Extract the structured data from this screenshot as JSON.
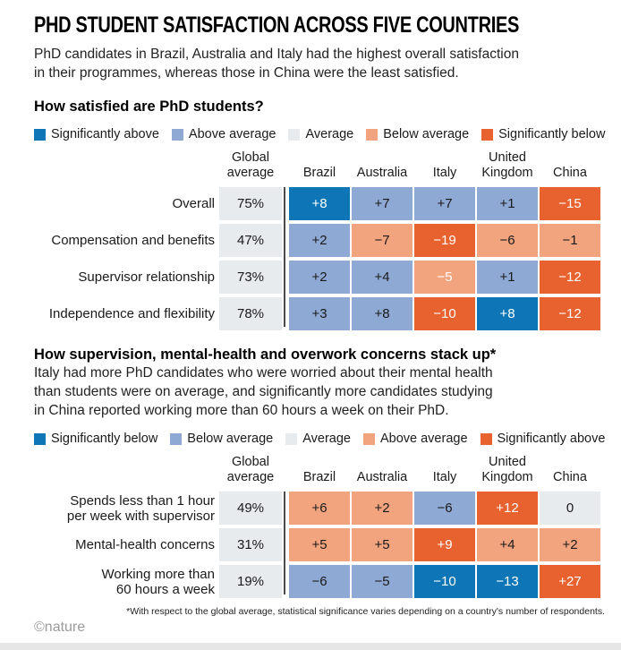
{
  "title": "PHD STUDENT SATISFACTION ACROSS FIVE COUNTRIES",
  "intro": [
    "PhD candidates in Brazil, Australia and Italy had the highest overall satisfaction",
    "in their programmes, whereas those in China were the least satisfied."
  ],
  "palette": {
    "dark-blue": "#0e76b6",
    "mid-blue": "#8ea9d4",
    "light-gray": "#e7ebee",
    "light-orange": "#f2a47e",
    "dark-orange": "#e7622e"
  },
  "footer": {
    "footnote": "*With respect to the global average, statistical significance varies depending on a country's number of respondents.",
    "credit": "©nature"
  },
  "chart_data": [
    {
      "type": "heatmap",
      "title": "How satisfied are PhD students?",
      "legend": [
        {
          "label": "Significantly above",
          "color": "dark-blue"
        },
        {
          "label": "Above average",
          "color": "mid-blue"
        },
        {
          "label": "Average",
          "color": "light-gray"
        },
        {
          "label": "Below average",
          "color": "light-orange"
        },
        {
          "label": "Significantly below",
          "color": "dark-orange"
        }
      ],
      "columns": [
        "Global average",
        "Brazil",
        "Australia",
        "Italy",
        "United Kingdom",
        "China"
      ],
      "rows": [
        {
          "label": [
            "Overall"
          ],
          "global": "75%",
          "cells": [
            {
              "v": "+8",
              "level": "dark-blue",
              "ink": "white"
            },
            {
              "v": "+7",
              "level": "mid-blue",
              "ink": "dark"
            },
            {
              "v": "+7",
              "level": "mid-blue",
              "ink": "dark"
            },
            {
              "v": "+1",
              "level": "mid-blue",
              "ink": "dark"
            },
            {
              "v": "−15",
              "level": "dark-orange",
              "ink": "white"
            }
          ]
        },
        {
          "label": [
            "Compensation and benefits"
          ],
          "global": "47%",
          "cells": [
            {
              "v": "+2",
              "level": "mid-blue",
              "ink": "dark"
            },
            {
              "v": "−7",
              "level": "light-orange",
              "ink": "dark"
            },
            {
              "v": "−19",
              "level": "dark-orange",
              "ink": "white"
            },
            {
              "v": "−6",
              "level": "light-orange",
              "ink": "dark"
            },
            {
              "v": "−1",
              "level": "light-orange",
              "ink": "dark"
            }
          ]
        },
        {
          "label": [
            "Supervisor relationship"
          ],
          "global": "73%",
          "cells": [
            {
              "v": "+2",
              "level": "mid-blue",
              "ink": "dark"
            },
            {
              "v": "+4",
              "level": "mid-blue",
              "ink": "dark"
            },
            {
              "v": "−5",
              "level": "light-orange",
              "ink": "white"
            },
            {
              "v": "+1",
              "level": "mid-blue",
              "ink": "dark"
            },
            {
              "v": "−12",
              "level": "dark-orange",
              "ink": "white"
            }
          ]
        },
        {
          "label": [
            "Independence and flexibility"
          ],
          "global": "78%",
          "cells": [
            {
              "v": "+3",
              "level": "mid-blue",
              "ink": "dark"
            },
            {
              "v": "+8",
              "level": "mid-blue",
              "ink": "dark"
            },
            {
              "v": "−10",
              "level": "dark-orange",
              "ink": "white"
            },
            {
              "v": "+8",
              "level": "dark-blue",
              "ink": "white"
            },
            {
              "v": "−12",
              "level": "dark-orange",
              "ink": "white"
            }
          ]
        }
      ]
    },
    {
      "type": "heatmap",
      "title": "How supervision, mental-health and overwork concerns stack up*",
      "description": [
        "Italy had more PhD candidates who were worried about their mental health",
        "than students were on average, and significantly more candidates studying",
        "in China reported working more than 60 hours a week on their PhD."
      ],
      "legend": [
        {
          "label": "Significantly below",
          "color": "dark-blue"
        },
        {
          "label": "Below average",
          "color": "mid-blue"
        },
        {
          "label": "Average",
          "color": "light-gray"
        },
        {
          "label": "Above average",
          "color": "light-orange"
        },
        {
          "label": "Significantly above",
          "color": "dark-orange"
        }
      ],
      "columns": [
        "Global average",
        "Brazil",
        "Australia",
        "Italy",
        "United Kingdom",
        "China"
      ],
      "rows": [
        {
          "label": [
            "Spends less than 1 hour",
            "per week with supervisor"
          ],
          "global": "49%",
          "cells": [
            {
              "v": "+6",
              "level": "light-orange",
              "ink": "dark"
            },
            {
              "v": "+2",
              "level": "light-orange",
              "ink": "dark"
            },
            {
              "v": "−6",
              "level": "mid-blue",
              "ink": "dark"
            },
            {
              "v": "+12",
              "level": "dark-orange",
              "ink": "white"
            },
            {
              "v": "0",
              "level": "light-gray",
              "ink": "dark"
            }
          ]
        },
        {
          "label": [
            "Mental-health concerns"
          ],
          "global": "31%",
          "cells": [
            {
              "v": "+5",
              "level": "light-orange",
              "ink": "dark"
            },
            {
              "v": "+5",
              "level": "light-orange",
              "ink": "dark"
            },
            {
              "v": "+9",
              "level": "dark-orange",
              "ink": "white"
            },
            {
              "v": "+4",
              "level": "light-orange",
              "ink": "dark"
            },
            {
              "v": "+2",
              "level": "light-orange",
              "ink": "dark"
            }
          ]
        },
        {
          "label": [
            "Working more than",
            "60 hours a week"
          ],
          "global": "19%",
          "cells": [
            {
              "v": "−6",
              "level": "mid-blue",
              "ink": "dark"
            },
            {
              "v": "−5",
              "level": "mid-blue",
              "ink": "dark"
            },
            {
              "v": "−10",
              "level": "dark-blue",
              "ink": "white"
            },
            {
              "v": "−13",
              "level": "dark-blue",
              "ink": "white"
            },
            {
              "v": "+27",
              "level": "dark-orange",
              "ink": "white"
            }
          ]
        }
      ]
    }
  ]
}
